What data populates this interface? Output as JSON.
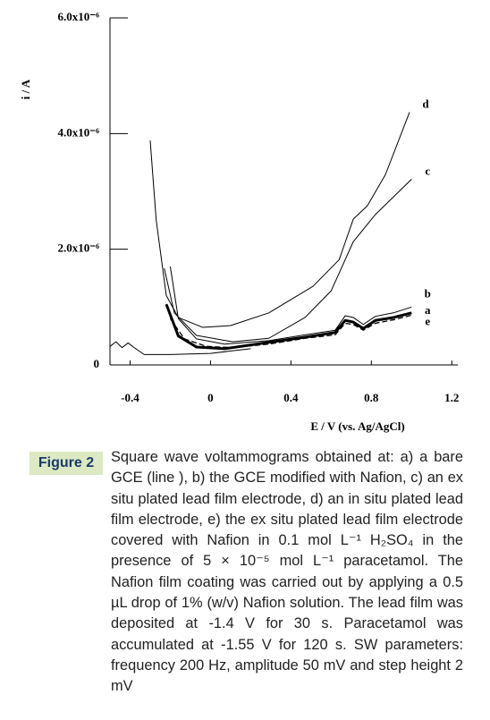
{
  "chart_data": {
    "type": "line",
    "ylabel": "i / A",
    "xlabel": "E / V (vs. Ag/AgCl)",
    "xlim": [
      -0.5,
      1.23
    ],
    "ylim": [
      0,
      6e-06
    ],
    "xticks": [
      -0.4,
      0,
      0.4,
      0.8,
      1.2
    ],
    "yticks": [
      0,
      {
        "value": 2e-06,
        "label": "2.0x10⁻⁶"
      },
      {
        "value": 4e-06,
        "label": "4.0x10⁻⁶"
      },
      {
        "value": 6e-06,
        "label": "6.0x10⁻⁶"
      }
    ],
    "grid": false,
    "series": [
      {
        "name": "d",
        "color": "#000",
        "width": 1,
        "dash": false,
        "x": [
          -0.3,
          -0.27,
          -0.22,
          -0.16,
          -0.04,
          0.1,
          0.29,
          0.51,
          0.64,
          0.71,
          0.78,
          0.87,
          0.99
        ],
        "values": [
          3.88e-06,
          2.5e-06,
          1.2e-06,
          8.2e-07,
          6.5e-07,
          6.8e-07,
          9e-07,
          1.36e-06,
          1.82e-06,
          2.52e-06,
          2.75e-06,
          3.29e-06,
          4.37e-06
        ]
      },
      {
        "name": "c",
        "color": "#000",
        "width": 1,
        "dash": false,
        "x": [
          -0.23,
          -0.18,
          -0.07,
          0.11,
          0.29,
          0.47,
          0.6,
          0.71,
          0.82,
          1.0
        ],
        "values": [
          1.67e-06,
          9e-07,
          5.1e-07,
          4e-07,
          4.6e-07,
          8.2e-07,
          1.28e-06,
          2.13e-06,
          2.6e-06,
          3.21e-06
        ]
      },
      {
        "name": "b",
        "color": "#000",
        "width": 1,
        "dash": false,
        "x": [
          -0.2,
          -0.16,
          -0.07,
          0.07,
          0.29,
          0.47,
          0.62,
          0.67,
          0.71,
          0.76,
          0.82,
          0.91,
          1.0
        ],
        "values": [
          1.7e-06,
          8e-07,
          4.5e-07,
          3.6e-07,
          4.2e-07,
          5.2e-07,
          6e-07,
          8.5e-07,
          8.2e-07,
          7e-07,
          8.4e-07,
          9e-07,
          1e-06
        ]
      },
      {
        "name": "a",
        "color": "#000",
        "width": 3,
        "dash": false,
        "x": [
          -0.22,
          -0.16,
          -0.07,
          0.07,
          0.29,
          0.47,
          0.62,
          0.67,
          0.71,
          0.76,
          0.82,
          0.91,
          1.0
        ],
        "values": [
          1.05e-06,
          5e-07,
          3.1e-07,
          2.8e-07,
          3.9e-07,
          4.8e-07,
          5.6e-07,
          7.7e-07,
          7.4e-07,
          6.3e-07,
          7.7e-07,
          8.2e-07,
          9e-07
        ]
      },
      {
        "name": "e",
        "color": "#000",
        "width": 1.3,
        "dash": true,
        "x": [
          -0.2,
          -0.13,
          -0.02,
          0.11,
          0.29,
          0.47,
          0.62,
          0.67,
          0.71,
          0.76,
          0.82,
          0.91,
          1.0
        ],
        "values": [
          8e-07,
          4.5e-07,
          3.2e-07,
          3e-07,
          3.6e-07,
          4.6e-07,
          5.2e-07,
          7.2e-07,
          7e-07,
          6e-07,
          7.2e-07,
          7.8e-07,
          8.6e-07
        ]
      },
      {
        "color": "#000",
        "width": 1,
        "dash": false,
        "x": [
          -0.5,
          -0.47,
          -0.44,
          -0.41,
          -0.38,
          -0.33,
          -0.2,
          0,
          0.2
        ],
        "values": [
          3.2e-07,
          4e-07,
          3e-07,
          3.8e-07,
          3e-07,
          1.8e-07,
          1.8e-07,
          2e-07,
          2.8e-07
        ]
      }
    ]
  },
  "figure_label": "Figure 2",
  "caption": "Square wave voltammograms obtained at: a) a bare GCE (line   ), b) the GCE modified with Nafion, c) an ex situ plated lead film electrode, d) an in situ plated lead film electrode, e) the ex situ plated lead film electrode covered with Nafion in 0.1 mol L⁻¹ H₂SO₄ in the presence of 5 × 10⁻⁵ mol L⁻¹ paracetamol. The Nafion film coating was carried out by applying a 0.5 µL drop of 1% (w/v) Nafion solution. The lead film was deposited at -1.4 V for 30 s. Paracetamol was accumulated at -1.55 V for 120 s. SW parameters: frequency 200 Hz, amplitude 50 mV and step height 2 mV"
}
